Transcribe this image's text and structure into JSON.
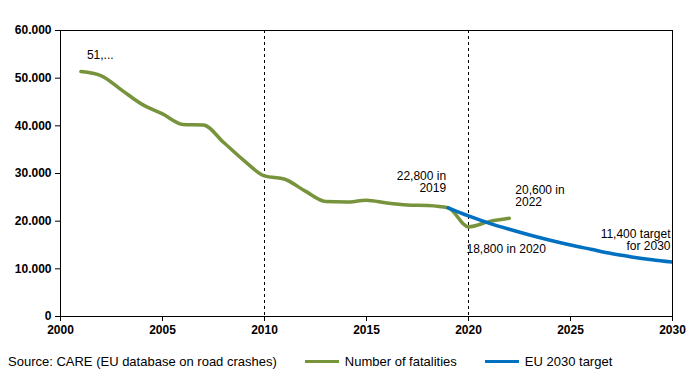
{
  "chart_data": {
    "type": "line",
    "source": "Source: CARE (EU database on road crashes)",
    "x": [
      2001,
      2002,
      2003,
      2004,
      2005,
      2006,
      2007,
      2008,
      2009,
      2010,
      2011,
      2012,
      2013,
      2014,
      2015,
      2016,
      2017,
      2018,
      2019,
      2020,
      2021,
      2022,
      2023,
      2024,
      2025,
      2026,
      2027,
      2028,
      2029,
      2030
    ],
    "series": [
      {
        "name": "Number of fatalities",
        "color": "#77933c",
        "values": [
          51400,
          50500,
          47500,
          44500,
          42500,
          40300,
          40200,
          36500,
          32700,
          29500,
          28800,
          26300,
          24100,
          24000,
          24400,
          23800,
          23400,
          23300,
          22800,
          18800,
          19900,
          20600,
          null,
          null,
          null,
          null,
          null,
          null,
          null,
          null
        ]
      },
      {
        "name": "EU 2030 target",
        "color": "#0070c0",
        "values": [
          null,
          null,
          null,
          null,
          null,
          null,
          null,
          null,
          null,
          null,
          null,
          null,
          null,
          null,
          null,
          null,
          null,
          null,
          22800,
          21100,
          19600,
          18300,
          17100,
          16000,
          15000,
          14100,
          13200,
          12500,
          11900,
          11400
        ]
      }
    ],
    "xlim": [
      2000,
      2030
    ],
    "xticks": [
      2000,
      2005,
      2010,
      2015,
      2020,
      2025,
      2030
    ],
    "ylim": [
      0,
      60000
    ],
    "yticks": [
      0,
      {
        "value": 10000,
        "label": "10.000"
      },
      {
        "value": 20000,
        "label": "20.000"
      },
      {
        "value": 30000,
        "label": "30.000"
      },
      {
        "value": 40000,
        "label": "40.000"
      },
      {
        "value": 50000,
        "label": "50.000"
      },
      {
        "value": 60000,
        "label": "60.000"
      }
    ],
    "reference_lines": [
      {
        "x": 2010
      },
      {
        "x": 2020
      }
    ],
    "annotations": [
      {
        "text": "51,...",
        "x": 2001,
        "y": 51400
      },
      {
        "text": "22,800 in 2019",
        "x": 2019,
        "y": 22800
      },
      {
        "text": "20,600 in 2022",
        "x": 2022,
        "y": 20600
      },
      {
        "text": "18,800 in 2020",
        "x": 2020,
        "y": 18800
      },
      {
        "text": "11,400 target for 2030",
        "x": 2030,
        "y": 11400
      }
    ],
    "grid": false,
    "legend": "bottom"
  }
}
